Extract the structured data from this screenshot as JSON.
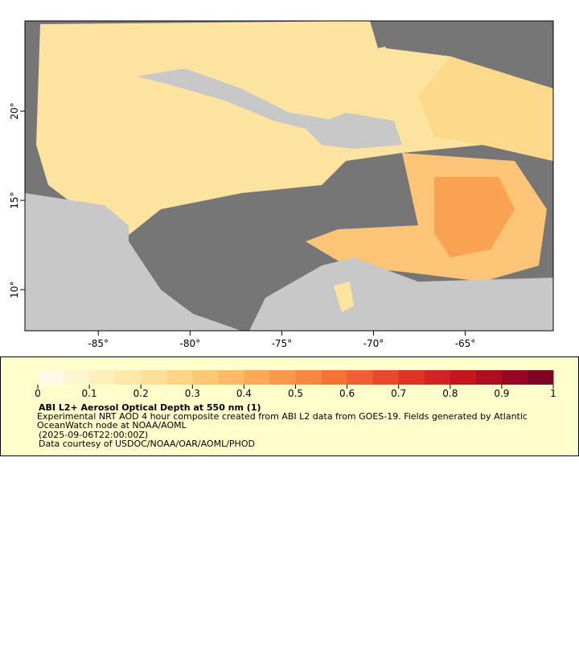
{
  "map": {
    "xlim": [
      -89,
      -60.2
    ],
    "ylim": [
      7.7,
      25.05
    ],
    "xticks": [
      {
        "value": -85,
        "label": "-85°"
      },
      {
        "value": -80,
        "label": "-80°"
      },
      {
        "value": -75,
        "label": "-75°"
      },
      {
        "value": -70,
        "label": "-70°"
      },
      {
        "value": -65,
        "label": "-65°"
      }
    ],
    "yticks": [
      {
        "value": 10,
        "label": "10°"
      },
      {
        "value": 15,
        "label": "15°"
      },
      {
        "value": 20,
        "label": "20°"
      }
    ]
  },
  "legend": {
    "ticks": [
      0,
      0.1,
      0.2,
      0.3,
      0.4,
      0.5,
      0.6,
      0.7,
      0.8,
      0.9,
      1
    ],
    "colors": [
      "#fffbe6",
      "#fff5cf",
      "#feefbb",
      "#fee8a7",
      "#fde095",
      "#fdd584",
      "#fdc873",
      "#fcbb64",
      "#fcaa57",
      "#fb994b",
      "#f98741",
      "#f67338",
      "#f15e31",
      "#ea482b",
      "#e13226",
      "#d42123",
      "#c41521",
      "#b00d22",
      "#990523",
      "#7f0123"
    ],
    "title": "ABI L2+ Aerosol Optical Depth at 550 nm (1)",
    "description": "Experimental NRT AOD 4 hour composite created from ABI L2 data from GOES-19. Fields generated by Atlantic OceanWatch node at NOAA/AOML",
    "time": "(2025-09-06T22:00:00Z)",
    "credit": "Data courtesy of USDOC/NOAA/OAR/AOML/PHOD"
  }
}
